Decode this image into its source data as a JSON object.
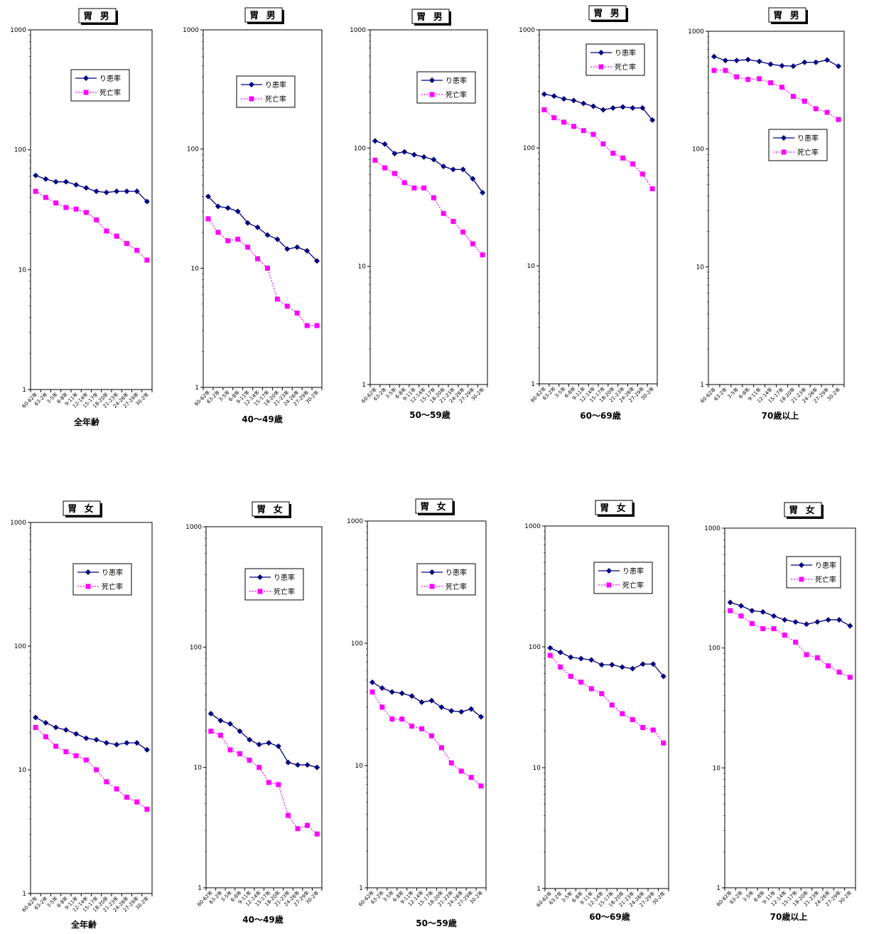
{
  "chart_data": [
    {
      "type": "line",
      "title": "胃 男",
      "xlabel": "全年齢",
      "yscale": "log",
      "ylim": [
        1,
        1000
      ],
      "categories": [
        "60-62年",
        "63-2年",
        "3-5年",
        "6-8年",
        "9-11年",
        "12-14年",
        "15-17年",
        "18-20年",
        "21-23年",
        "24-26年",
        "27-29年",
        "30-2年"
      ],
      "yticks": [
        "1",
        "10",
        "100",
        "1000"
      ],
      "legend_position": "upper-middle",
      "series": [
        {
          "name": "り患率",
          "color": "#000080",
          "marker": "diamond",
          "values": [
            61,
            57,
            54,
            54,
            51,
            48,
            45,
            44,
            45,
            45,
            45,
            37
          ]
        },
        {
          "name": "死亡率",
          "color": "#ff00ff",
          "marker": "square",
          "dashed": true,
          "values": [
            45,
            40,
            36,
            33,
            32,
            30,
            26,
            21,
            19,
            16.5,
            14.5,
            12
          ]
        }
      ]
    },
    {
      "type": "line",
      "title": "胃 男",
      "xlabel": "40〜49歳",
      "yscale": "log",
      "ylim": [
        1,
        1000
      ],
      "categories": [
        "60-62年",
        "63-2年",
        "3-5年",
        "6-8年",
        "9-11年",
        "12-14年",
        "15-17年",
        "18-20年",
        "21-23年",
        "24-26年",
        "27-29年",
        "30-2年"
      ],
      "yticks": [
        "1",
        "10",
        "100",
        "1000"
      ],
      "legend_position": "upper-middle",
      "series": [
        {
          "name": "り患率",
          "color": "#000080",
          "marker": "diamond",
          "values": [
            40,
            33,
            32,
            30,
            24,
            22,
            19,
            17.5,
            14.5,
            15,
            14,
            11.5
          ]
        },
        {
          "name": "死亡率",
          "color": "#ff00ff",
          "marker": "square",
          "dashed": true,
          "values": [
            26,
            20,
            17,
            17.5,
            15,
            12,
            10,
            5.5,
            4.8,
            4.2,
            3.3,
            3.3
          ]
        }
      ]
    },
    {
      "type": "line",
      "title": "胃 男",
      "xlabel": "50〜59歳",
      "yscale": "log",
      "ylim": [
        1,
        1000
      ],
      "categories": [
        "60-62年",
        "63-2年",
        "3-5年",
        "6-8年",
        "9-11年",
        "12-14年",
        "15-17年",
        "18-20年",
        "21-23年",
        "24-26年",
        "27-29年",
        "30-2年"
      ],
      "yticks": [
        "1",
        "10",
        "100",
        "1000"
      ],
      "legend_position": "upper-middle",
      "series": [
        {
          "name": "り患率",
          "color": "#000080",
          "marker": "diamond",
          "values": [
            115,
            108,
            90,
            93,
            88,
            84,
            80,
            70,
            66,
            66,
            55,
            42
          ]
        },
        {
          "name": "死亡率",
          "color": "#ff00ff",
          "marker": "square",
          "dashed": true,
          "values": [
            79,
            68,
            61,
            51,
            46,
            46,
            38,
            28,
            24,
            19.5,
            15.5,
            12.5
          ]
        }
      ]
    },
    {
      "type": "line",
      "title": "胃 男",
      "xlabel": "60〜69歳",
      "yscale": "log",
      "ylim": [
        1,
        1000
      ],
      "categories": [
        "60-62年",
        "63-2年",
        "3-5年",
        "6-8年",
        "9-11年",
        "12-14年",
        "15-17年",
        "18-20年",
        "21-23年",
        "24-26年",
        "27-29年",
        "30-2年"
      ],
      "yticks": [
        "1",
        "10",
        "100",
        "1000"
      ],
      "legend_position": "top",
      "series": [
        {
          "name": "り患率",
          "color": "#000080",
          "marker": "diamond",
          "values": [
            285,
            275,
            260,
            252,
            238,
            225,
            210,
            218,
            222,
            218,
            218,
            172
          ]
        },
        {
          "name": "死亡率",
          "color": "#ff00ff",
          "marker": "square",
          "dashed": true,
          "values": [
            210,
            180,
            165,
            152,
            140,
            130,
            108,
            90,
            82,
            73,
            60,
            45
          ]
        }
      ]
    },
    {
      "type": "line",
      "title": "胃 男",
      "xlabel": "70歳以上",
      "yscale": "log",
      "ylim": [
        1,
        1000
      ],
      "categories": [
        "60-62年",
        "63-2年",
        "3-5年",
        "6-8年",
        "9-11年",
        "12-14年",
        "15-17年",
        "18-20年",
        "21-23年",
        "24-26年",
        "27-29年",
        "30-2年"
      ],
      "yticks": [
        "1",
        "10",
        "100",
        "1000"
      ],
      "legend_position": "middle",
      "series": [
        {
          "name": "り患率",
          "color": "#000080",
          "marker": "diamond",
          "values": [
            610,
            565,
            565,
            575,
            555,
            525,
            510,
            505,
            545,
            545,
            570,
            505
          ]
        },
        {
          "name": "死亡率",
          "color": "#ff00ff",
          "marker": "square",
          "dashed": true,
          "values": [
            465,
            465,
            410,
            390,
            395,
            365,
            335,
            280,
            255,
            220,
            205,
            178
          ]
        }
      ]
    },
    {
      "type": "line",
      "title": "胃 女",
      "xlabel": "全年齢",
      "yscale": "log",
      "ylim": [
        1,
        1000
      ],
      "categories": [
        "60-62年",
        "63-2年",
        "3-5年",
        "6-8年",
        "9-11年",
        "12-14年",
        "15-17年",
        "18-20年",
        "21-23年",
        "24-26年",
        "27-29年",
        "30-2年"
      ],
      "yticks": [
        "1",
        "10",
        "100",
        "1000"
      ],
      "legend_position": "upper-middle",
      "series": [
        {
          "name": "り患率",
          "color": "#000080",
          "marker": "diamond",
          "values": [
            26.5,
            24,
            22,
            21,
            19.5,
            18,
            17.5,
            16.5,
            16,
            16.5,
            16.5,
            14.5
          ]
        },
        {
          "name": "死亡率",
          "color": "#ff00ff",
          "marker": "square",
          "dashed": true,
          "values": [
            22,
            18.5,
            15.5,
            14,
            13,
            12,
            10,
            8,
            7,
            6,
            5.5,
            4.8
          ]
        }
      ]
    },
    {
      "type": "line",
      "title": "胃 女",
      "xlabel": "40〜49歳",
      "yscale": "log",
      "ylim": [
        1,
        1000
      ],
      "categories": [
        "60-62年",
        "63-2年",
        "3-5年",
        "6-8年",
        "9-11年",
        "12-14年",
        "15-17年",
        "18-20年",
        "21-23年",
        "24-26年",
        "27-29年",
        "30-2年"
      ],
      "yticks": [
        "1",
        "10",
        "100",
        "1000"
      ],
      "legend_position": "upper-middle",
      "series": [
        {
          "name": "り患率",
          "color": "#000080",
          "marker": "diamond",
          "values": [
            28,
            24.5,
            23,
            20,
            17,
            15.5,
            16,
            15,
            11,
            10.5,
            10.5,
            10
          ]
        },
        {
          "name": "死亡率",
          "color": "#ff00ff",
          "marker": "square",
          "dashed": true,
          "values": [
            20,
            18.5,
            14,
            13,
            11.5,
            10,
            7.5,
            7.2,
            4,
            3.1,
            3.3,
            2.8
          ]
        }
      ]
    },
    {
      "type": "line",
      "title": "胃 女",
      "xlabel": "50〜59歳",
      "yscale": "log",
      "ylim": [
        1,
        1000
      ],
      "categories": [
        "60-62年",
        "63-2年",
        "3-5年",
        "6-8年",
        "9-11年",
        "12-14年",
        "15-17年",
        "18-20年",
        "21-23年",
        "24-26年",
        "27-29年",
        "30-2年"
      ],
      "yticks": [
        "1",
        "10",
        "100",
        "1000"
      ],
      "legend_position": "upper-middle",
      "series": [
        {
          "name": "り患率",
          "color": "#000080",
          "marker": "diamond",
          "values": [
            48,
            43,
            40,
            39,
            37,
            33,
            34,
            30,
            28,
            27.5,
            29,
            25
          ]
        },
        {
          "name": "死亡率",
          "color": "#ff00ff",
          "marker": "square",
          "dashed": true,
          "values": [
            40,
            30,
            24,
            24,
            21,
            20,
            17.5,
            14,
            10.5,
            9,
            8,
            6.8
          ]
        }
      ]
    },
    {
      "type": "line",
      "title": "胃 女",
      "xlabel": "60〜69歳",
      "yscale": "log",
      "ylim": [
        1,
        1000
      ],
      "categories": [
        "60-62年",
        "63-2年",
        "3-5年",
        "6-8年",
        "9-11年",
        "12-14年",
        "15-17年",
        "18-20年",
        "21-23年",
        "24-26年",
        "27-29年",
        "30-2年"
      ],
      "yticks": [
        "1",
        "10",
        "100",
        "1000"
      ],
      "legend_position": "upper-middle",
      "series": [
        {
          "name": "り患率",
          "color": "#000080",
          "marker": "diamond",
          "values": [
            98,
            90,
            82,
            80,
            78,
            71,
            71,
            68,
            66,
            72,
            72,
            57
          ]
        },
        {
          "name": "死亡率",
          "color": "#ff00ff",
          "marker": "square",
          "dashed": true,
          "values": [
            85,
            68,
            57,
            51,
            45,
            41,
            33,
            28,
            25,
            21.5,
            20.5,
            16
          ]
        }
      ]
    },
    {
      "type": "line",
      "title": "胃 女",
      "xlabel": "70歳以上",
      "yscale": "log",
      "ylim": [
        1,
        1000
      ],
      "categories": [
        "60-62年",
        "63-2年",
        "3-5年",
        "6-8年",
        "9-11年",
        "12-14年",
        "15-17年",
        "18-20年",
        "21-23年",
        "24-26年",
        "27-29年",
        "30-2年"
      ],
      "yticks": [
        "1",
        "10",
        "100",
        "1000"
      ],
      "legend_position": "top-right",
      "series": [
        {
          "name": "り患率",
          "color": "#000080",
          "marker": "diamond",
          "values": [
            240,
            225,
            205,
            200,
            185,
            172,
            165,
            158,
            165,
            172,
            172,
            153
          ]
        },
        {
          "name": "死亡率",
          "color": "#ff00ff",
          "marker": "square",
          "dashed": true,
          "values": [
            205,
            185,
            160,
            145,
            145,
            128,
            112,
            88,
            83,
            71,
            63,
            57
          ]
        }
      ]
    }
  ]
}
